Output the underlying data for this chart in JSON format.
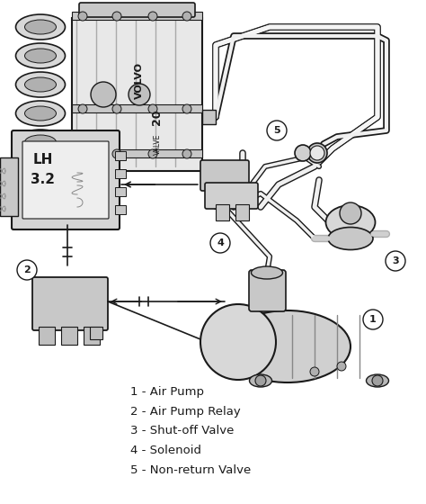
{
  "background_color": "#ffffff",
  "fig_width": 4.74,
  "fig_height": 5.6,
  "dpi": 100,
  "legend_items": [
    "1 - Air Pump",
    "2 - Air Pump Relay",
    "3 - Shut-off Valve",
    "4 - Solenoid",
    "5 - Non-return Valve"
  ],
  "legend_fontsize": 9.5,
  "line_color": "#1a1a1a",
  "gray1": "#c8c8c8",
  "gray2": "#e0e0e0",
  "gray3": "#a0a0a0",
  "tube_lw": 2.0,
  "wire_lw": 1.2
}
